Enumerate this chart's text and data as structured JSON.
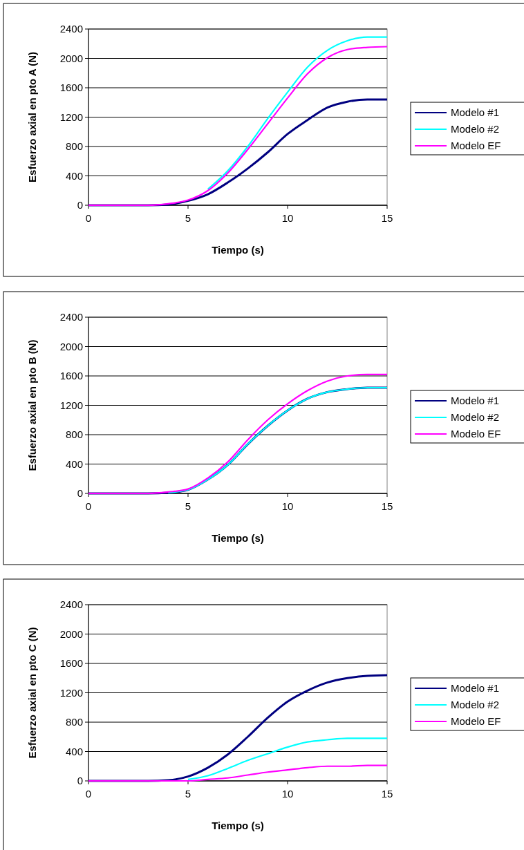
{
  "chart_data": [
    {
      "type": "line",
      "xlabel": "Tiempo (s)",
      "ylabel": "Esfuerzo axial en pto A (N)",
      "xlim": [
        0,
        15
      ],
      "xticks": [
        0,
        5,
        10,
        15
      ],
      "ylim": [
        0,
        2400
      ],
      "yticks": [
        0,
        400,
        800,
        1200,
        1600,
        2000,
        2400
      ],
      "grid": "y",
      "legend": "right",
      "x": [
        0,
        1,
        2,
        3,
        4,
        5,
        6,
        7,
        8,
        9,
        10,
        11,
        12,
        13,
        14,
        15
      ],
      "series": [
        {
          "name": "Modelo #1",
          "color": "#000080",
          "values": [
            0,
            0,
            0,
            0,
            10,
            60,
            150,
            310,
            500,
            720,
            970,
            1160,
            1330,
            1410,
            1440,
            1440
          ]
        },
        {
          "name": "Modelo #2",
          "color": "#00ffff",
          "values": [
            null,
            null,
            null,
            null,
            null,
            null,
            220,
            470,
            800,
            1180,
            1540,
            1880,
            2110,
            2240,
            2290,
            2290
          ]
        },
        {
          "name": "Modelo EF",
          "color": "#ff00ff",
          "values": [
            0,
            0,
            0,
            0,
            20,
            70,
            200,
            440,
            760,
            1110,
            1460,
            1790,
            2010,
            2120,
            2150,
            2160
          ]
        }
      ]
    },
    {
      "type": "line",
      "xlabel": "Tiempo (s)",
      "ylabel": "Esfuerzo axial en pto B (N)",
      "xlim": [
        0,
        15
      ],
      "xticks": [
        0,
        5,
        10,
        15
      ],
      "ylim": [
        0,
        2400
      ],
      "yticks": [
        0,
        400,
        800,
        1200,
        1600,
        2000,
        2400
      ],
      "grid": "y",
      "legend": "right",
      "x": [
        0,
        1,
        2,
        3,
        4,
        5,
        6,
        7,
        8,
        9,
        10,
        11,
        12,
        13,
        14,
        15
      ],
      "series": [
        {
          "name": "Modelo #1",
          "color": "#000080",
          "values": [
            0,
            0,
            0,
            0,
            10,
            50,
            190,
            390,
            670,
            920,
            1130,
            1290,
            1380,
            1420,
            1440,
            1440
          ]
        },
        {
          "name": "Modelo #2",
          "color": "#00ffff",
          "values": [
            null,
            null,
            null,
            null,
            10,
            50,
            190,
            390,
            670,
            920,
            1130,
            1290,
            1380,
            1420,
            1440,
            1440
          ]
        },
        {
          "name": "Modelo EF",
          "color": "#ff00ff",
          "values": [
            0,
            0,
            0,
            0,
            20,
            60,
            210,
            430,
            730,
            1000,
            1220,
            1400,
            1530,
            1600,
            1620,
            1620
          ]
        }
      ]
    },
    {
      "type": "line",
      "xlabel": "Tiempo (s)",
      "ylabel": "Esfuerzo axial en pto C (N)",
      "xlim": [
        0,
        15
      ],
      "xticks": [
        0,
        5,
        10,
        15
      ],
      "ylim": [
        0,
        2400
      ],
      "yticks": [
        0,
        400,
        800,
        1200,
        1600,
        2000,
        2400
      ],
      "grid": "y",
      "legend": "right",
      "x": [
        0,
        1,
        2,
        3,
        4,
        5,
        6,
        7,
        8,
        9,
        10,
        11,
        12,
        13,
        14,
        15
      ],
      "series": [
        {
          "name": "Modelo #1",
          "color": "#000080",
          "values": [
            0,
            0,
            0,
            0,
            10,
            60,
            180,
            360,
            600,
            860,
            1080,
            1230,
            1340,
            1400,
            1430,
            1440
          ]
        },
        {
          "name": "Modelo #2",
          "color": "#00ffff",
          "values": [
            null,
            null,
            null,
            null,
            null,
            20,
            70,
            170,
            280,
            370,
            460,
            530,
            560,
            580,
            580,
            580
          ]
        },
        {
          "name": "Modelo EF",
          "color": "#ff00ff",
          "values": [
            0,
            0,
            0,
            0,
            0,
            0,
            20,
            40,
            80,
            120,
            150,
            180,
            200,
            200,
            210,
            210
          ]
        }
      ]
    }
  ]
}
